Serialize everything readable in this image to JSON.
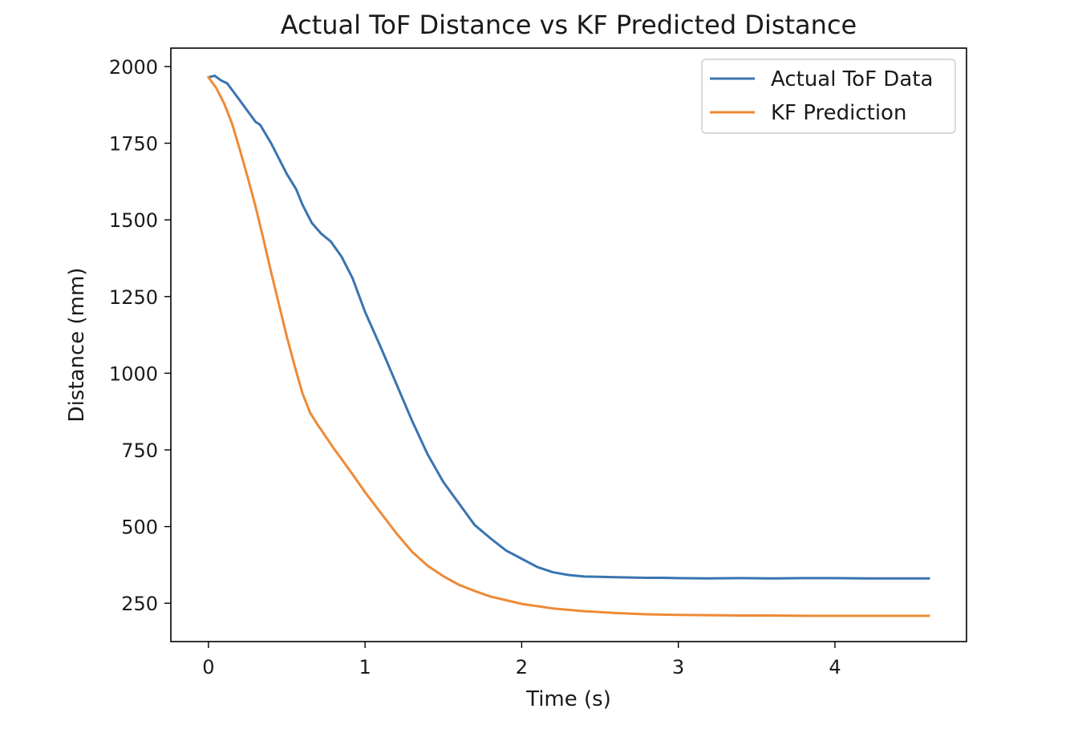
{
  "chart_data": {
    "type": "line",
    "title": "Actual ToF Distance vs KF Predicted Distance",
    "xlabel": "Time (s)",
    "ylabel": "Distance (mm)",
    "xlim": [
      -0.24,
      4.84
    ],
    "ylim": [
      125,
      2060
    ],
    "x_ticks": [
      0,
      1,
      2,
      3,
      4
    ],
    "x_tick_labels": [
      "0",
      "1",
      "2",
      "3",
      "4"
    ],
    "y_ticks": [
      250,
      500,
      750,
      1000,
      1250,
      1500,
      1750,
      2000
    ],
    "y_tick_labels": [
      "250",
      "500",
      "750",
      "1000",
      "1250",
      "1500",
      "1750",
      "2000"
    ],
    "grid": false,
    "legend_position": "top-right",
    "series": [
      {
        "name": "Actual ToF Data",
        "color": "#3a74b0",
        "x": [
          0,
          0.04,
          0.08,
          0.12,
          0.2,
          0.3,
          0.33,
          0.4,
          0.5,
          0.56,
          0.6,
          0.66,
          0.72,
          0.78,
          0.85,
          0.92,
          1.0,
          1.1,
          1.2,
          1.3,
          1.4,
          1.5,
          1.6,
          1.7,
          1.8,
          1.9,
          2.0,
          2.1,
          2.2,
          2.3,
          2.4,
          2.5,
          2.6,
          2.7,
          2.8,
          2.9,
          3.0,
          3.2,
          3.4,
          3.6,
          3.8,
          4.0,
          4.2,
          4.4,
          4.6
        ],
        "y": [
          1965,
          1970,
          1955,
          1945,
          1890,
          1820,
          1810,
          1750,
          1650,
          1600,
          1550,
          1490,
          1455,
          1430,
          1380,
          1310,
          1200,
          1085,
          965,
          845,
          735,
          645,
          575,
          505,
          462,
          422,
          395,
          368,
          351,
          342,
          337,
          336,
          335,
          334,
          333,
          333,
          332,
          331,
          332,
          331,
          332,
          332,
          331,
          331,
          331
        ]
      },
      {
        "name": "KF Prediction",
        "color": "#ee8a36",
        "x": [
          0,
          0.05,
          0.1,
          0.15,
          0.2,
          0.25,
          0.3,
          0.35,
          0.4,
          0.45,
          0.5,
          0.55,
          0.6,
          0.65,
          0.7,
          0.8,
          0.9,
          1.0,
          1.1,
          1.2,
          1.3,
          1.4,
          1.5,
          1.6,
          1.7,
          1.8,
          1.9,
          2.0,
          2.2,
          2.4,
          2.6,
          2.8,
          3.0,
          3.2,
          3.4,
          3.6,
          3.8,
          4.0,
          4.2,
          4.4,
          4.6
        ],
        "y": [
          1965,
          1930,
          1880,
          1815,
          1730,
          1640,
          1545,
          1440,
          1330,
          1225,
          1120,
          1025,
          935,
          870,
          830,
          755,
          685,
          612,
          545,
          478,
          418,
          372,
          338,
          310,
          290,
          272,
          260,
          248,
          233,
          224,
          218,
          214,
          212,
          211,
          210,
          210,
          209,
          209,
          209,
          209,
          209
        ]
      }
    ]
  }
}
